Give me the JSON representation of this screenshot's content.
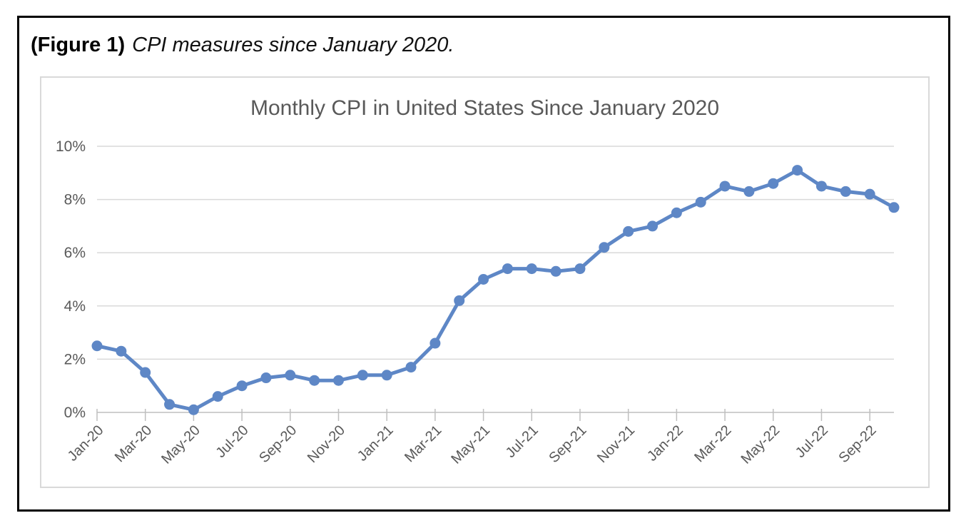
{
  "figure_caption": {
    "label": "(Figure 1)",
    "text": "CPI measures since January 2020."
  },
  "chart_data": {
    "type": "line",
    "title": "Monthly CPI in United States Since January 2020",
    "x": [
      "Jan-20",
      "Feb-20",
      "Mar-20",
      "Apr-20",
      "May-20",
      "Jun-20",
      "Jul-20",
      "Aug-20",
      "Sep-20",
      "Oct-20",
      "Nov-20",
      "Dec-20",
      "Jan-21",
      "Feb-21",
      "Mar-21",
      "Apr-21",
      "May-21",
      "Jun-21",
      "Jul-21",
      "Aug-21",
      "Sep-21",
      "Oct-21",
      "Nov-21",
      "Dec-21",
      "Jan-22",
      "Feb-22",
      "Mar-22",
      "Apr-22",
      "May-22",
      "Jun-22",
      "Jul-22",
      "Aug-22",
      "Sep-22",
      "Oct-22"
    ],
    "values": [
      2.5,
      2.3,
      1.5,
      0.3,
      0.1,
      0.6,
      1.0,
      1.3,
      1.4,
      1.2,
      1.2,
      1.4,
      1.4,
      1.7,
      2.6,
      4.2,
      5.0,
      5.4,
      5.4,
      5.3,
      5.4,
      6.2,
      6.8,
      7.0,
      7.5,
      7.9,
      8.5,
      8.3,
      8.6,
      9.1,
      8.5,
      8.3,
      8.2,
      7.7
    ],
    "x_tick_labels": [
      "Jan-20",
      "Mar-20",
      "May-20",
      "Jul-20",
      "Sep-20",
      "Nov-20",
      "Jan-21",
      "Mar-21",
      "May-21",
      "Jul-21",
      "Sep-21",
      "Nov-21",
      "Jan-22",
      "Mar-22",
      "May-22",
      "Jul-22",
      "Sep-22"
    ],
    "x_tick_interval": 2,
    "y_tick_labels": [
      "0%",
      "2%",
      "4%",
      "6%",
      "8%",
      "10%"
    ],
    "y_ticks": [
      0,
      2,
      4,
      6,
      8,
      10
    ],
    "ylim": [
      0,
      10
    ],
    "grid": "horizontal",
    "legend": "none",
    "series_name": "Monthly CPI",
    "line_color": "#5E87C6",
    "marker": "circle",
    "title_color": "#595959",
    "gridline_color": "#D9D9D9",
    "axis_color": "#BFBFBF"
  }
}
